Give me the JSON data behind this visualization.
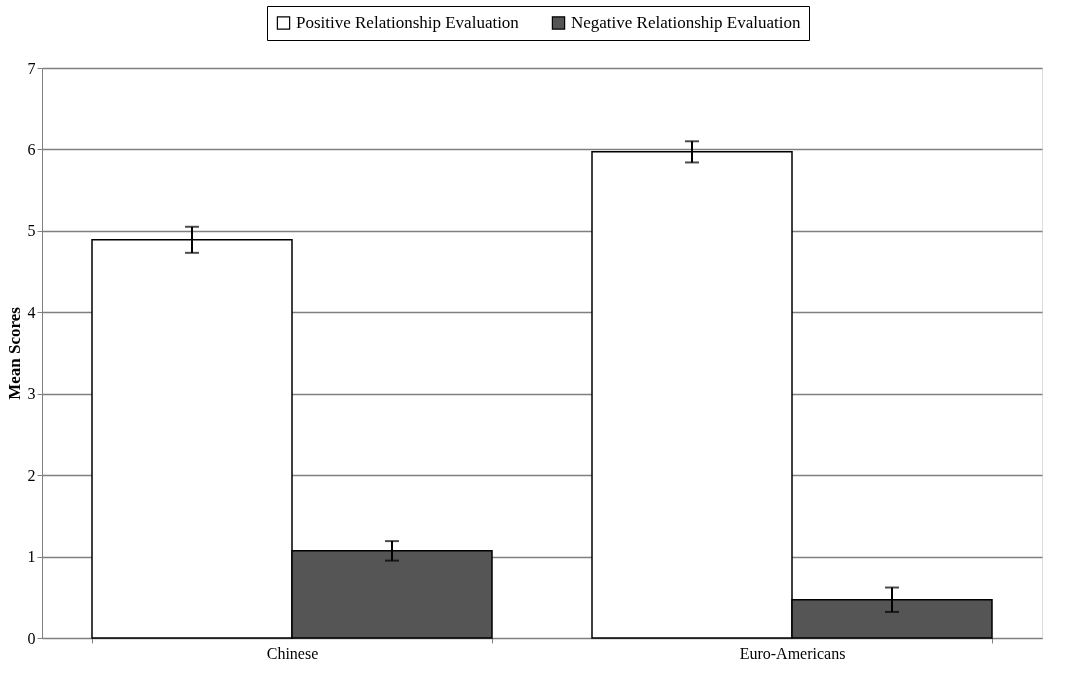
{
  "chart_data": {
    "type": "bar",
    "ylabel": "Mean Scores",
    "categories": [
      "Chinese",
      "Euro-Americans"
    ],
    "series": [
      {
        "name": "Positive Relationship Evaluation",
        "color": "#ffffff",
        "values": [
          4.89,
          5.97
        ],
        "errors": [
          0.16,
          0.13
        ]
      },
      {
        "name": "Negative Relationship Evaluation",
        "color": "#555555",
        "values": [
          1.07,
          0.47
        ],
        "errors": [
          0.12,
          0.15
        ]
      }
    ],
    "ylim": [
      0,
      7
    ],
    "yticks": [
      0,
      1,
      2,
      3,
      4,
      5,
      6,
      7
    ],
    "grid": "y",
    "legend": "top"
  }
}
